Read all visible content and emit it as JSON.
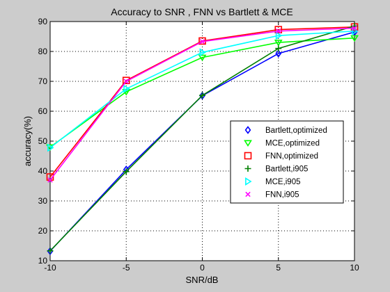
{
  "chart_data": {
    "type": "line",
    "title": "Accuracy to SNR , FNN vs Bartlett & MCE",
    "xlabel": "SNR/dB",
    "ylabel": "accuracy(%)",
    "x": [
      -10,
      -5,
      0,
      5,
      10
    ],
    "xlim": [
      -10,
      10
    ],
    "ylim": [
      10,
      90
    ],
    "xticks": [
      -10,
      -5,
      0,
      5,
      10
    ],
    "yticks": [
      10,
      20,
      30,
      40,
      50,
      60,
      70,
      80,
      90
    ],
    "grid": true,
    "legend_position": "right",
    "series": [
      {
        "name": "Bartlett,optimized",
        "color": "#0000ff",
        "marker": "diamond",
        "values": [
          13.2,
          40.5,
          65.2,
          79.3,
          86.5
        ]
      },
      {
        "name": "MCE,optimized",
        "color": "#00ff00",
        "marker": "triangle-down",
        "values": [
          48,
          66.5,
          78,
          83,
          84.5
        ]
      },
      {
        "name": "FNN,optimized",
        "color": "#ff0000",
        "marker": "square",
        "values": [
          38,
          70.3,
          83.5,
          87.3,
          88.2
        ]
      },
      {
        "name": "Bartlett,i905",
        "color": "#007f00",
        "marker": "plus",
        "values": [
          13.3,
          39.8,
          65.3,
          81,
          88.5
        ]
      },
      {
        "name": "MCE,i905",
        "color": "#00ffff",
        "marker": "triangle-right",
        "values": [
          47.8,
          67.5,
          79.7,
          85.3,
          86.8
        ]
      },
      {
        "name": "FNN,i905",
        "color": "#ff00ff",
        "marker": "x",
        "values": [
          37,
          70,
          83.3,
          86.8,
          87.8
        ]
      }
    ]
  }
}
